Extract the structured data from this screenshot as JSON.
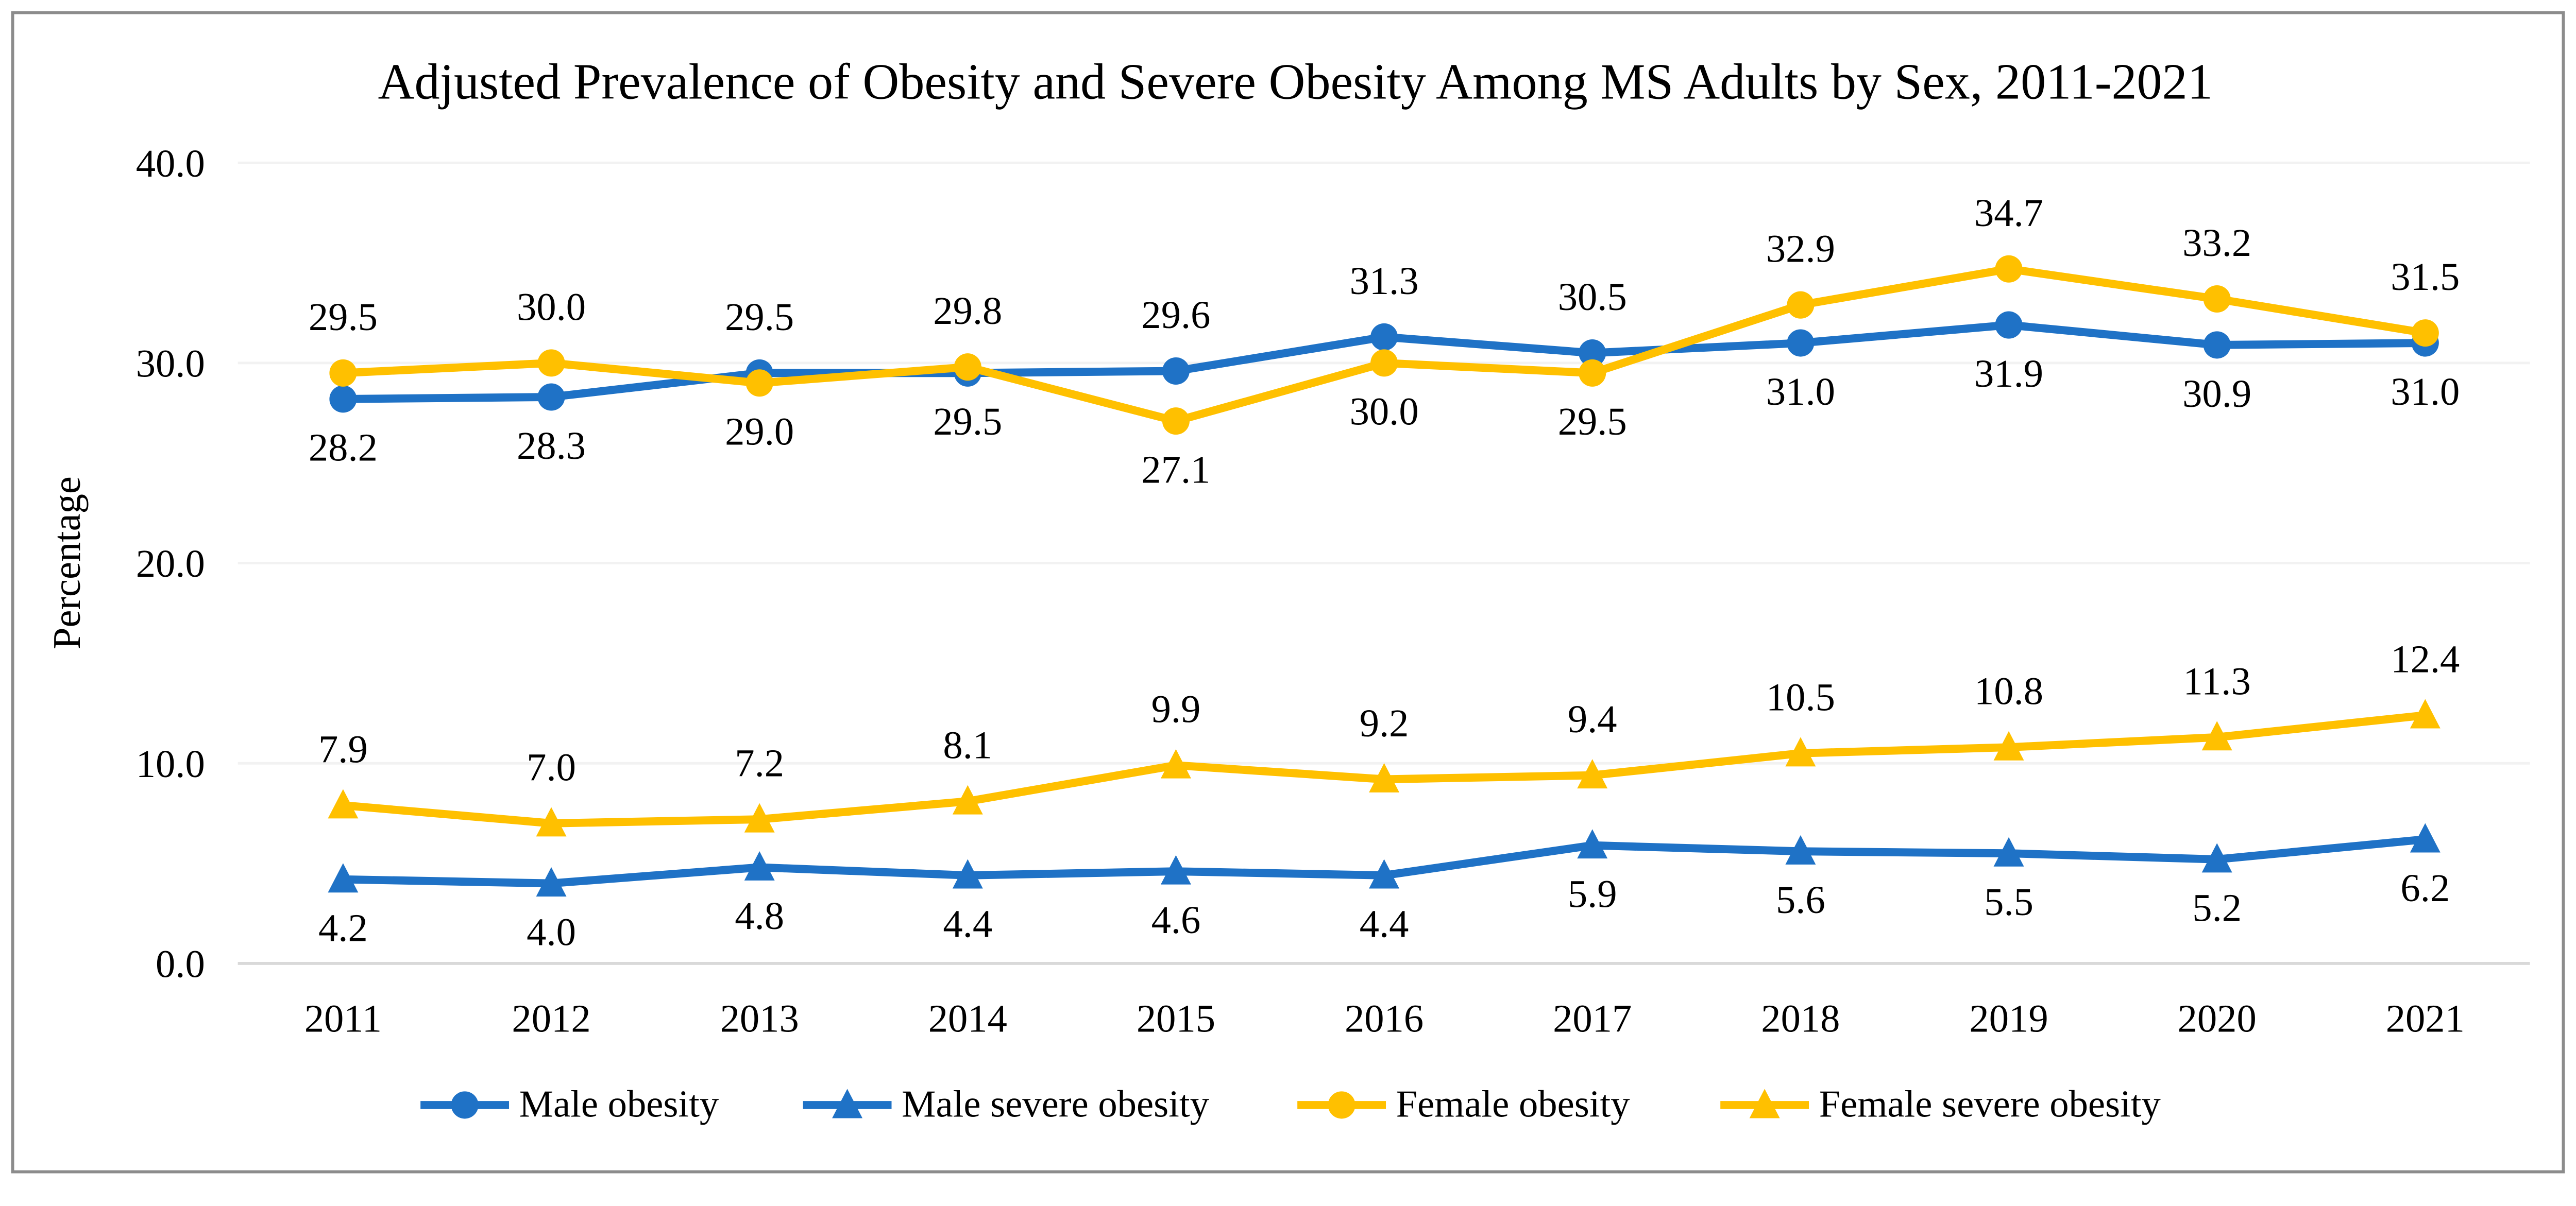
{
  "chart_data": {
    "type": "line",
    "title": "Adjusted Prevalence of Obesity and Severe Obesity Among MS Adults by Sex, 2011-2021",
    "xlabel": "",
    "ylabel": "Percentage",
    "ylim": [
      0,
      40
    ],
    "grid": true,
    "legend_position": "bottom",
    "label_format_decimals": 1,
    "yticks": [
      {
        "value": 0,
        "label": "0.0"
      },
      {
        "value": 10,
        "label": "10.0"
      },
      {
        "value": 20,
        "label": "20.0"
      },
      {
        "value": 30,
        "label": "30.0"
      },
      {
        "value": 40,
        "label": "40.0"
      }
    ],
    "categories": [
      "2011",
      "2012",
      "2013",
      "2014",
      "2015",
      "2016",
      "2017",
      "2018",
      "2019",
      "2020",
      "2021"
    ],
    "series": [
      {
        "name": "Male obesity",
        "marker": "circle",
        "color": "#1F72C6",
        "values": [
          28.2,
          28.3,
          29.5,
          29.5,
          29.6,
          31.3,
          30.5,
          31.0,
          31.9,
          30.9,
          31.0
        ],
        "label_positions": [
          "below",
          "below",
          "above",
          "below",
          "above",
          "above",
          "above",
          "below",
          "below",
          "below",
          "below"
        ]
      },
      {
        "name": "Male severe obesity",
        "marker": "triangle",
        "color": "#1F72C6",
        "values": [
          4.2,
          4.0,
          4.8,
          4.4,
          4.6,
          4.4,
          5.9,
          5.6,
          5.5,
          5.2,
          6.2
        ],
        "label_positions": [
          "below",
          "below",
          "below",
          "below",
          "below",
          "below",
          "below",
          "below",
          "below",
          "below",
          "below"
        ]
      },
      {
        "name": "Female obesity",
        "marker": "circle",
        "color": "#FFC000",
        "values": [
          29.5,
          30.0,
          29.0,
          29.8,
          27.1,
          30.0,
          29.5,
          32.9,
          34.7,
          33.2,
          31.5
        ],
        "label_positions": [
          "above",
          "above",
          "below",
          "above",
          "below",
          "below",
          "below",
          "above",
          "above",
          "above",
          "above"
        ]
      },
      {
        "name": "Female severe obesity",
        "marker": "triangle",
        "color": "#FFC000",
        "values": [
          7.9,
          7.0,
          7.2,
          8.1,
          9.9,
          9.2,
          9.4,
          10.5,
          10.8,
          11.3,
          12.4
        ],
        "label_positions": [
          "above",
          "above",
          "above",
          "above",
          "above",
          "above",
          "above",
          "above",
          "above",
          "above",
          "above"
        ]
      }
    ],
    "colors": {
      "grid": "#F2F2F2",
      "axis_line": "#D9D9D9",
      "frame": "#8C8C8C",
      "text": "#000000",
      "background": "#FFFFFF"
    }
  }
}
